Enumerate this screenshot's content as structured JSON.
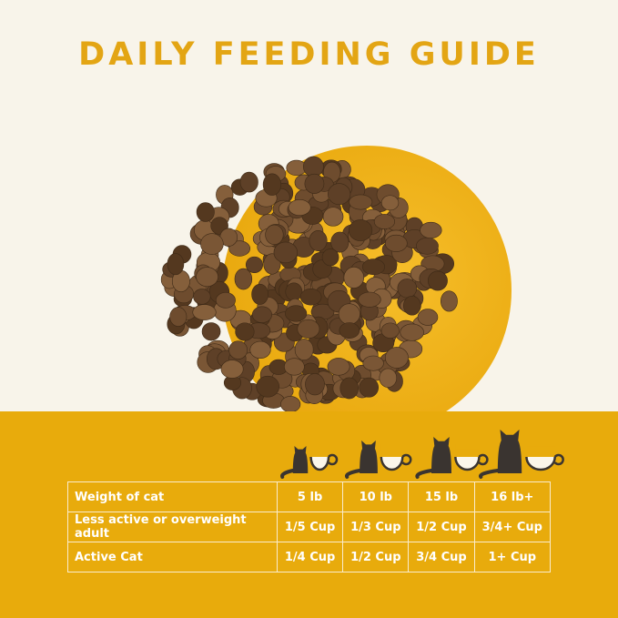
{
  "title": "DAILY FEEDING GUIDE",
  "colors": {
    "title": "#e3a514",
    "band": "#e8ab0c",
    "background": "#f8f4ea",
    "kibble": "#6b4a2c"
  },
  "icons": [
    "cat-with-cup-small",
    "cat-with-cup-medium",
    "cat-with-cup-large",
    "cat-with-cup-xlarge"
  ],
  "table": {
    "rows": [
      {
        "label": "Weight of cat",
        "values": [
          "5 lb",
          "10 lb",
          "15 lb",
          "16 lb+"
        ]
      },
      {
        "label": "Less active or overweight adult",
        "values": [
          "1/5 Cup",
          "1/3 Cup",
          "1/2 Cup",
          "3/4+ Cup"
        ]
      },
      {
        "label": "Active Cat",
        "values": [
          "1/4 Cup",
          "1/2 Cup",
          "3/4 Cup",
          "1+ Cup"
        ]
      }
    ]
  }
}
